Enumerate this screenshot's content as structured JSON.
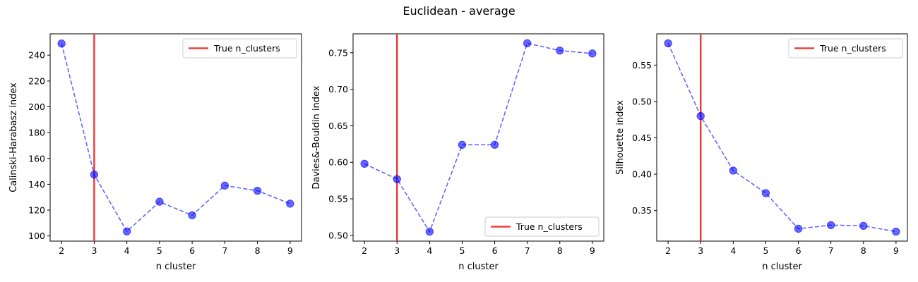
{
  "figure": {
    "suptitle": "Euclidean - average"
  },
  "colors": {
    "series": "#0000ff",
    "true_line": "#e8413c",
    "axes": "#000000"
  },
  "chart_data": [
    {
      "type": "line",
      "xlabel": "n cluster",
      "ylabel": "Calinski-Harabasz index",
      "x": [
        2,
        3,
        4,
        5,
        6,
        7,
        8,
        9
      ],
      "series": [
        {
          "values": [
            249.0,
            147.5,
            103.5,
            126.5,
            116.0,
            139.0,
            135.0,
            125.0
          ]
        }
      ],
      "true_n_clusters": 3,
      "xlim": [
        1.65,
        9.35
      ],
      "ylim": [
        96.0,
        256.5
      ],
      "yticks": [
        100,
        120,
        140,
        160,
        180,
        200,
        220,
        240
      ],
      "ytick_labels": [
        "100",
        "120",
        "140",
        "160",
        "180",
        "200",
        "220",
        "240"
      ],
      "xticks": [
        2,
        3,
        4,
        5,
        6,
        7,
        8,
        9
      ],
      "legend": {
        "label": "True n_clusters",
        "placement": "upper right"
      },
      "grid": false
    },
    {
      "type": "line",
      "xlabel": "n cluster",
      "ylabel": "Davies&-Bouldin index",
      "x": [
        2,
        3,
        4,
        5,
        6,
        7,
        8,
        9
      ],
      "series": [
        {
          "values": [
            0.598,
            0.577,
            0.505,
            0.624,
            0.624,
            0.763,
            0.753,
            0.749
          ]
        }
      ],
      "true_n_clusters": 3,
      "xlim": [
        1.65,
        9.35
      ],
      "ylim": [
        0.4921,
        0.7759
      ],
      "yticks": [
        0.5,
        0.55,
        0.6,
        0.65,
        0.7,
        0.75
      ],
      "ytick_labels": [
        "0.50",
        "0.55",
        "0.60",
        "0.65",
        "0.70",
        "0.75"
      ],
      "xticks": [
        2,
        3,
        4,
        5,
        6,
        7,
        8,
        9
      ],
      "legend": {
        "label": "True n_clusters",
        "placement": "lower right"
      },
      "grid": false
    },
    {
      "type": "line",
      "xlabel": "n cluster",
      "ylabel": "Silhouette index",
      "x": [
        2,
        3,
        4,
        5,
        6,
        7,
        8,
        9
      ],
      "series": [
        {
          "values": [
            0.58,
            0.48,
            0.405,
            0.374,
            0.325,
            0.33,
            0.329,
            0.321
          ]
        }
      ],
      "true_n_clusters": 3,
      "xlim": [
        1.65,
        9.35
      ],
      "ylim": [
        0.308,
        0.593
      ],
      "yticks": [
        0.35,
        0.4,
        0.45,
        0.5,
        0.55
      ],
      "ytick_labels": [
        "0.35",
        "0.40",
        "0.45",
        "0.50",
        "0.55"
      ],
      "xticks": [
        2,
        3,
        4,
        5,
        6,
        7,
        8,
        9
      ],
      "legend": {
        "label": "True n_clusters",
        "placement": "upper right"
      },
      "grid": false
    }
  ]
}
